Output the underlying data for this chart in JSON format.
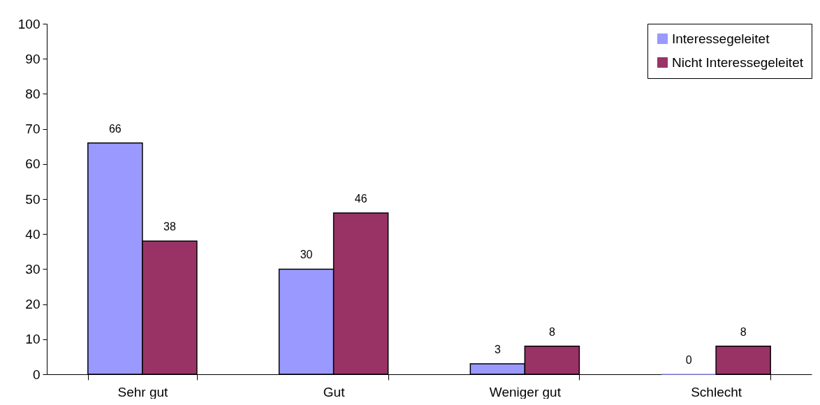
{
  "chart_data": {
    "type": "bar",
    "categories": [
      "Sehr gut",
      "Gut",
      "Weniger gut",
      "Schlecht"
    ],
    "series": [
      {
        "name": "Interessegeleitet",
        "color": "#9999ff",
        "values": [
          66,
          30,
          3,
          0
        ]
      },
      {
        "name": "Nicht Interessegeleitet",
        "color": "#993366",
        "values": [
          38,
          46,
          8,
          8
        ]
      }
    ],
    "ylim": [
      0,
      100
    ],
    "yticks": [
      0,
      10,
      20,
      30,
      40,
      50,
      60,
      70,
      80,
      90,
      100
    ],
    "data_labels": true,
    "legend": "top right"
  }
}
